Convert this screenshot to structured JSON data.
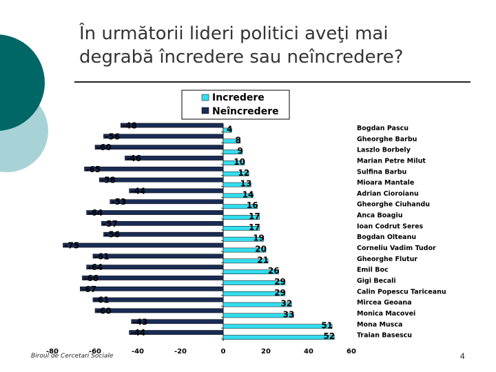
{
  "slide": {
    "title_line1": "În următorii lideri politici aveţi mai",
    "title_line2": "degrabă încredere sau neîncredere?",
    "footer": "Biroul de Cercetari Sociale",
    "page_number": "4"
  },
  "colors": {
    "incredere": "#33ddee",
    "neincredere": "#1a2c55",
    "teal": "#006666",
    "light_teal": "#a8d3d6"
  },
  "chart_data": {
    "type": "bar",
    "orientation": "horizontal",
    "legend_position": "top-center",
    "grid": false,
    "xlim": [
      -80,
      60
    ],
    "x_ticks": [
      "-80",
      "-60",
      "-40",
      "-20",
      "0",
      "20",
      "40",
      "60"
    ],
    "categories": [
      "Bogdan Pascu",
      "Gheorghe Barbu",
      "Laszlo Borbely",
      "Marian Petre Milut",
      "Sulfina Barbu",
      "Mioara Mantale",
      "Adrian Cioroianu",
      "Gheorghe Ciuhandu",
      "Anca Boagiu",
      "Ioan Codrut Seres",
      "Bogdan Olteanu",
      "Corneliu Vadim Tudor",
      "Gheorghe Flutur",
      "Emil Boc",
      "Gigi Becali",
      "Calin Popescu Tariceanu",
      "Mircea Geoana",
      "Monica Macovei",
      "Mona Musca",
      "Traian Basescu"
    ],
    "series": [
      {
        "name": "Increderе",
        "values": [
          4,
          8,
          9,
          10,
          12,
          13,
          14,
          16,
          17,
          17,
          19,
          20,
          21,
          26,
          29,
          29,
          32,
          33,
          51,
          52
        ]
      },
      {
        "name": "Neîncredere",
        "values": [
          -48,
          -56,
          -60,
          -46,
          -65,
          -58,
          -44,
          -53,
          -64,
          -57,
          -56,
          -75,
          -61,
          -64,
          -66,
          -67,
          -61,
          -60,
          -43,
          -44
        ]
      }
    ]
  }
}
